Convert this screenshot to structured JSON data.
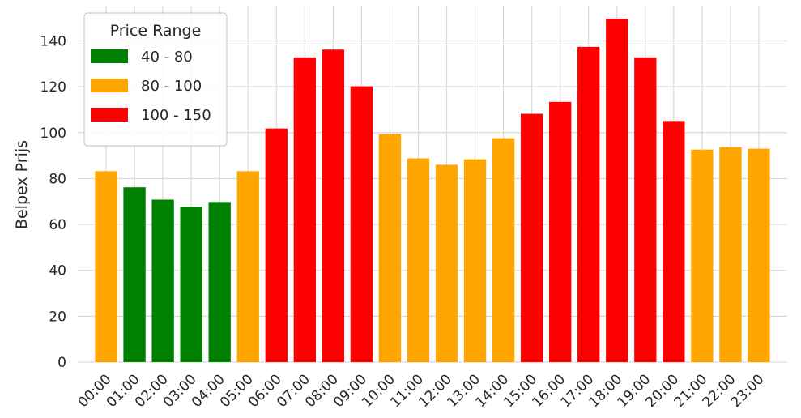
{
  "chart_data": {
    "type": "bar",
    "title": "",
    "xlabel": "",
    "ylabel": "Belpex Prijs",
    "ylim": [
      0,
      155
    ],
    "yticks": [
      0,
      20,
      40,
      60,
      80,
      100,
      120,
      140
    ],
    "grid": true,
    "categories": [
      "00:00",
      "01:00",
      "02:00",
      "03:00",
      "04:00",
      "05:00",
      "06:00",
      "07:00",
      "08:00",
      "09:00",
      "10:00",
      "11:00",
      "12:00",
      "13:00",
      "14:00",
      "15:00",
      "16:00",
      "17:00",
      "18:00",
      "19:00",
      "20:00",
      "21:00",
      "22:00",
      "23:00"
    ],
    "values": [
      83.2,
      76.2,
      70.8,
      67.7,
      69.8,
      83.2,
      101.8,
      132.8,
      136.2,
      120.2,
      99.3,
      88.8,
      86.0,
      88.4,
      97.6,
      108.2,
      113.4,
      137.4,
      149.7,
      132.8,
      105.1,
      92.6,
      93.7,
      93.0
    ],
    "ranges": [
      "80 - 100",
      "40 - 80",
      "40 - 80",
      "40 - 80",
      "40 - 80",
      "80 - 100",
      "100 - 150",
      "100 - 150",
      "100 - 150",
      "100 - 150",
      "80 - 100",
      "80 - 100",
      "80 - 100",
      "80 - 100",
      "80 - 100",
      "100 - 150",
      "100 - 150",
      "100 - 150",
      "100 - 150",
      "100 - 150",
      "100 - 150",
      "80 - 100",
      "80 - 100",
      "80 - 100"
    ],
    "legend": {
      "title": "Price Range",
      "position": "top-left",
      "entries": [
        {
          "label": "40 - 80",
          "color": "#008000"
        },
        {
          "label": "80 - 100",
          "color": "#FFA500"
        },
        {
          "label": "100 - 150",
          "color": "#FF0000"
        }
      ]
    }
  }
}
